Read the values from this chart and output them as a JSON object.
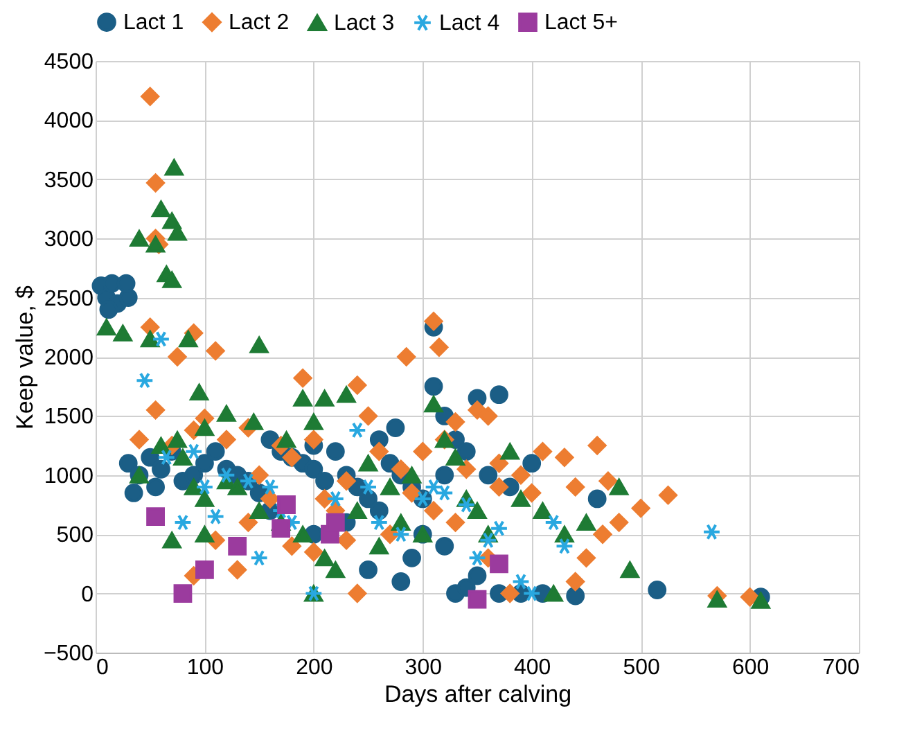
{
  "chart_data": {
    "type": "scatter",
    "xlabel": "Days after calving",
    "ylabel": "Keep value, $",
    "xlim": [
      0,
      700
    ],
    "xticks": [
      0,
      100,
      200,
      300,
      400,
      500,
      600,
      700
    ],
    "ylim": [
      -500,
      4500
    ],
    "yticks": [
      -500,
      0,
      500,
      1000,
      1500,
      2000,
      2500,
      3000,
      3500,
      4000,
      4500
    ],
    "grid": true,
    "legend": "top",
    "series": [
      {
        "name": "Lact 1",
        "color": "#1b5e86",
        "marker": "circle",
        "x": [
          5,
          10,
          15,
          20,
          30,
          12,
          28,
          30,
          40,
          50,
          60,
          70,
          35,
          55,
          80,
          90,
          100,
          110,
          120,
          130,
          150,
          160,
          170,
          180,
          190,
          200,
          210,
          220,
          230,
          240,
          250,
          260,
          270,
          280,
          290,
          300,
          310,
          310,
          320,
          330,
          340,
          350,
          370,
          360,
          380,
          300,
          320,
          330,
          340,
          350,
          370,
          390,
          410,
          440,
          460,
          515,
          610,
          290,
          280,
          250,
          230,
          200,
          160,
          140,
          260,
          200,
          275,
          320,
          400
        ],
        "values": [
          2600,
          2500,
          2620,
          2450,
          2500,
          2400,
          2620,
          1100,
          1000,
          1150,
          1050,
          1200,
          850,
          900,
          950,
          1000,
          1100,
          1200,
          1050,
          1000,
          850,
          1300,
          1200,
          1150,
          1100,
          1050,
          950,
          1200,
          1000,
          900,
          800,
          700,
          1100,
          1000,
          900,
          800,
          2250,
          1750,
          1500,
          1300,
          1200,
          1650,
          1680,
          1000,
          900,
          500,
          400,
          0,
          50,
          150,
          0,
          0,
          0,
          -20,
          800,
          30,
          -30,
          300,
          100,
          200,
          600,
          500,
          700,
          950,
          1300,
          1250,
          1400,
          1000,
          1100
        ]
      },
      {
        "name": "Lact 2",
        "color": "#ed7d31",
        "marker": "diamond",
        "x": [
          50,
          55,
          55,
          58,
          50,
          55,
          75,
          90,
          110,
          190,
          240,
          285,
          310,
          315,
          40,
          70,
          90,
          100,
          120,
          140,
          150,
          170,
          180,
          200,
          210,
          220,
          230,
          240,
          250,
          260,
          280,
          300,
          320,
          330,
          340,
          350,
          360,
          370,
          390,
          400,
          410,
          430,
          440,
          460,
          470,
          480,
          500,
          525,
          465,
          450,
          440,
          570,
          600,
          180,
          200,
          130,
          110,
          90,
          310,
          270,
          330,
          360,
          380,
          290,
          230,
          160,
          140,
          370
        ],
        "values": [
          4200,
          3470,
          3000,
          2950,
          2250,
          1550,
          2000,
          2200,
          2050,
          1820,
          1760,
          2000,
          2300,
          2080,
          1300,
          1250,
          1380,
          1480,
          1300,
          1400,
          1000,
          1250,
          1150,
          1300,
          800,
          700,
          450,
          0,
          1500,
          1200,
          1050,
          1200,
          1300,
          1450,
          1050,
          1550,
          1500,
          1100,
          1000,
          850,
          1200,
          1150,
          900,
          1250,
          950,
          600,
          720,
          830,
          500,
          300,
          100,
          -20,
          -30,
          400,
          350,
          200,
          450,
          150,
          700,
          500,
          600,
          300,
          0,
          850,
          950,
          800,
          600,
          900
        ]
      },
      {
        "name": "Lact 3",
        "color": "#1e7b34",
        "marker": "triangle",
        "x": [
          72,
          60,
          70,
          75,
          40,
          55,
          65,
          70,
          10,
          25,
          50,
          85,
          150,
          190,
          210,
          230,
          75,
          60,
          95,
          100,
          120,
          145,
          175,
          200,
          40,
          80,
          90,
          100,
          120,
          130,
          150,
          170,
          190,
          210,
          220,
          200,
          250,
          270,
          290,
          310,
          320,
          330,
          340,
          350,
          360,
          380,
          390,
          410,
          430,
          450,
          480,
          490,
          420,
          570,
          610,
          300,
          280,
          240,
          260,
          100,
          70
        ],
        "values": [
          3600,
          3250,
          3150,
          3050,
          3000,
          2950,
          2700,
          2650,
          2250,
          2200,
          2150,
          2150,
          2100,
          1650,
          1650,
          1680,
          1300,
          1250,
          1700,
          1400,
          1520,
          1450,
          1300,
          1450,
          1000,
          1150,
          900,
          800,
          950,
          900,
          700,
          600,
          500,
          300,
          200,
          0,
          1100,
          900,
          1000,
          1600,
          1300,
          1150,
          800,
          700,
          500,
          1200,
          800,
          700,
          500,
          600,
          900,
          200,
          0,
          -50,
          -60,
          500,
          600,
          700,
          400,
          500,
          450
        ]
      },
      {
        "name": "Lact 4",
        "color": "#29a8e0",
        "marker": "cross",
        "x": [
          45,
          60,
          65,
          90,
          100,
          120,
          140,
          160,
          170,
          180,
          200,
          220,
          240,
          250,
          260,
          280,
          300,
          310,
          320,
          340,
          350,
          360,
          370,
          390,
          400,
          420,
          430,
          565,
          150,
          80,
          110
        ],
        "values": [
          1800,
          2150,
          1150,
          1200,
          900,
          1000,
          950,
          900,
          700,
          600,
          0,
          800,
          1380,
          900,
          600,
          500,
          800,
          900,
          850,
          750,
          300,
          450,
          550,
          100,
          0,
          600,
          400,
          520,
          300,
          600,
          650
        ]
      },
      {
        "name": "Lact 5+",
        "color": "#9b3b9e",
        "marker": "square",
        "x": [
          55,
          80,
          100,
          130,
          170,
          175,
          215,
          220,
          350,
          370
        ],
        "values": [
          650,
          0,
          200,
          400,
          550,
          750,
          500,
          600,
          -50,
          250
        ]
      }
    ]
  }
}
